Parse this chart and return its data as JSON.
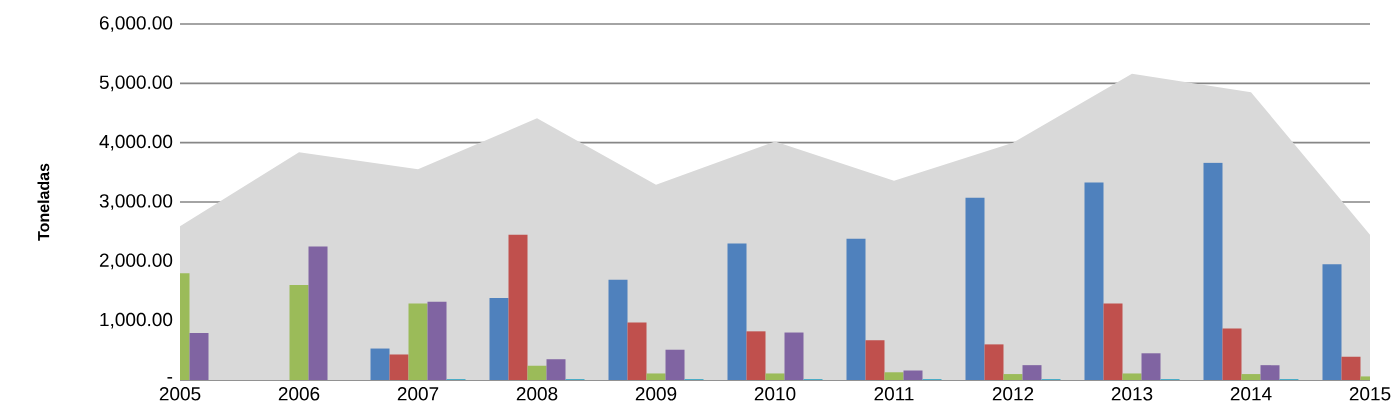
{
  "chart_data": {
    "type": "bar",
    "ylabel": "Toneladas",
    "categories": [
      "2005",
      "2006",
      "2007",
      "2008",
      "2009",
      "2010",
      "2011",
      "2012",
      "2013",
      "2014",
      "2015"
    ],
    "series": [
      {
        "type": "area",
        "color": "#d9d9d9",
        "values": [
          2590,
          3840,
          3550,
          4410,
          3290,
          4020,
          3360,
          4000,
          5160,
          4850,
          2450
        ]
      },
      {
        "color": "#4f81bd",
        "values": [
          0,
          0,
          530,
          1380,
          1690,
          2300,
          2380,
          3070,
          3330,
          3660,
          1950
        ]
      },
      {
        "color": "#c0504d",
        "values": [
          0,
          0,
          430,
          2450,
          970,
          820,
          670,
          600,
          1290,
          870,
          390
        ]
      },
      {
        "color": "#9bbb59",
        "values": [
          1800,
          1600,
          1290,
          240,
          110,
          110,
          130,
          100,
          110,
          100,
          60
        ]
      },
      {
        "color": "#8064a2",
        "values": [
          790,
          2250,
          1320,
          350,
          510,
          800,
          160,
          250,
          450,
          250,
          null
        ]
      },
      {
        "color": "#4bacc6",
        "values": [
          0,
          0,
          15,
          15,
          15,
          15,
          15,
          15,
          15,
          15,
          null
        ]
      }
    ],
    "ylim": [
      0,
      6000
    ],
    "yticks": [
      {
        "value": 0,
        "label": "-"
      },
      {
        "value": 1000,
        "label": "1,000.00"
      },
      {
        "value": 2000,
        "label": "2,000.00"
      },
      {
        "value": 3000,
        "label": "3,000.00"
      },
      {
        "value": 4000,
        "label": "4,000.00"
      },
      {
        "value": 5000,
        "label": "5,000.00"
      },
      {
        "value": 6000,
        "label": "6,000.00"
      }
    ],
    "grid": "y"
  }
}
